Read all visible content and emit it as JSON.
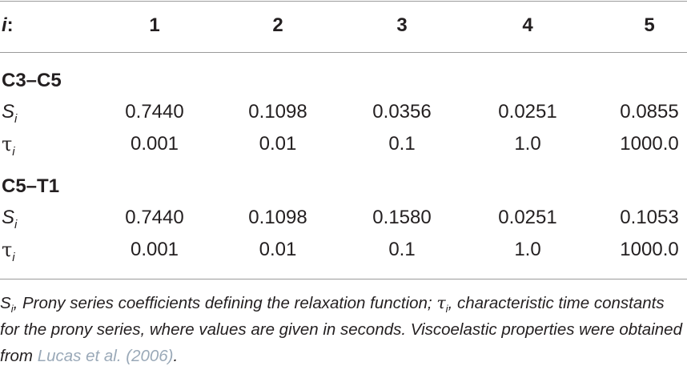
{
  "table": {
    "header": {
      "index_label": "i",
      "index_colon": ":",
      "columns": [
        "1",
        "2",
        "3",
        "4",
        "5"
      ]
    },
    "sections": [
      {
        "title": "C3–C5",
        "rows": [
          {
            "symbol": "S",
            "subscript": "i",
            "values": [
              "0.7440",
              "0.1098",
              "0.0356",
              "0.0251",
              "0.0855"
            ]
          },
          {
            "symbol": "τ",
            "subscript": "i",
            "values": [
              "0.001",
              "0.01",
              "0.1",
              "1.0",
              "1000.0"
            ]
          }
        ]
      },
      {
        "title": "C5–T1",
        "rows": [
          {
            "symbol": "S",
            "subscript": "i",
            "values": [
              "0.7440",
              "0.1098",
              "0.1580",
              "0.0251",
              "0.1053"
            ]
          },
          {
            "symbol": "τ",
            "subscript": "i",
            "values": [
              "0.001",
              "0.01",
              "0.1",
              "1.0",
              "1000.0"
            ]
          }
        ]
      }
    ]
  },
  "footnote": {
    "s_symbol": "S",
    "s_sub": "i",
    "s_text": ", Prony series coefficients defining the relaxation function; ",
    "tau_symbol": "τ",
    "tau_sub": "i",
    "tau_text": ", characteristic time constants for the prony series, where values are given in seconds. Viscoelastic properties were obtained from ",
    "reference": "Lucas et al. (2006)",
    "end": "."
  },
  "colors": {
    "text": "#231f20",
    "rule": "#9a9a9a",
    "reference_link": "#9aa9b8"
  }
}
